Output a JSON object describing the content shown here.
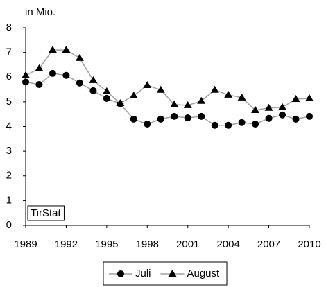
{
  "chart_data": {
    "type": "line",
    "y_label": "in Mio.",
    "annotation": "TirStat",
    "x": [
      1989,
      1990,
      1991,
      1992,
      1993,
      1994,
      1995,
      1996,
      1997,
      1998,
      1999,
      2000,
      2001,
      2002,
      2003,
      2004,
      2005,
      2006,
      2007,
      2008,
      2009,
      2010
    ],
    "series": [
      {
        "name": "Juli",
        "marker": "circle",
        "color": "#000000",
        "line_color": "#a0a0a0",
        "values": [
          5.8,
          5.7,
          6.15,
          6.07,
          5.76,
          5.45,
          5.14,
          4.92,
          4.3,
          4.1,
          4.3,
          4.41,
          4.35,
          4.41,
          4.05,
          4.05,
          4.16,
          4.1,
          4.33,
          4.47,
          4.3,
          4.41
        ]
      },
      {
        "name": "August",
        "marker": "triangle",
        "color": "#000000",
        "line_color": "#a0a0a0",
        "values": [
          6.07,
          6.35,
          7.1,
          7.1,
          6.77,
          5.87,
          5.42,
          4.94,
          5.25,
          5.67,
          5.48,
          4.89,
          4.86,
          5.03,
          5.48,
          5.28,
          5.17,
          4.66,
          4.75,
          4.78,
          5.11,
          5.14
        ]
      }
    ],
    "xlim": [
      1989,
      2010
    ],
    "xticks": [
      1989,
      1992,
      1995,
      1998,
      2001,
      2004,
      2007,
      2010
    ],
    "ylim": [
      0,
      8
    ],
    "yticks": [
      0,
      1,
      2,
      3,
      4,
      5,
      6,
      7,
      8
    ],
    "grid": false,
    "legend": "bottom"
  }
}
